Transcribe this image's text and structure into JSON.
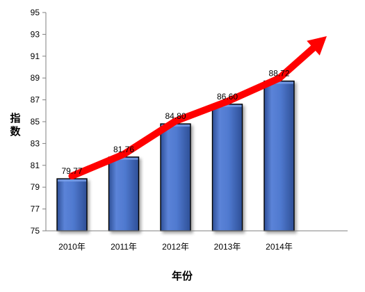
{
  "chart_data": {
    "type": "bar",
    "xlabel": "年份",
    "ylabel": "指数",
    "categories": [
      "2010年",
      "2011年",
      "2012年",
      "2013年",
      "2014年"
    ],
    "values": [
      79.77,
      81.76,
      84.8,
      86.6,
      88.72
    ],
    "data_labels": [
      "79.77",
      "81.76",
      "84.80",
      "86.60",
      "88.72"
    ],
    "ylim": [
      75,
      95
    ],
    "yticks": [
      75,
      77,
      79,
      81,
      83,
      85,
      87,
      89,
      91,
      93,
      95
    ],
    "grid": false,
    "legend": "none",
    "trend_arrow": true,
    "colors": {
      "bar_fill": "#4f79cf",
      "bar_light": "#7aa0e8",
      "bar_dark": "#2e4f96",
      "bar_edge": "#000000",
      "trend_arrow": "#ff0000",
      "axis": "#7f7f7f"
    }
  }
}
